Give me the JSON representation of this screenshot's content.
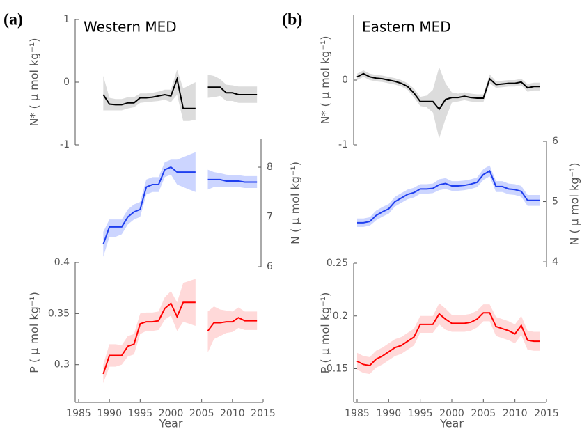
{
  "chart_data": [
    {
      "type": "line",
      "panel_label": "(a)",
      "title": "Western MED",
      "ylabel": "N* ( μ mol kg⁻¹)",
      "x": [
        1989,
        1990,
        1991,
        1992,
        1993,
        1994,
        1995,
        1996,
        1997,
        1998,
        1999,
        2000,
        2001,
        2002,
        2003,
        2004,
        2005,
        2006,
        2007,
        2008,
        2009,
        2010,
        2011,
        2012,
        2013,
        2014
      ],
      "xlim": [
        1985,
        2015
      ],
      "ylim": [
        -1,
        1
      ],
      "yticks": [
        1,
        0,
        -1
      ],
      "series": [
        {
          "color": "#000000",
          "band_color": "#dcdcdc",
          "values": [
            -0.2,
            -0.35,
            -0.36,
            -0.36,
            -0.33,
            -0.33,
            -0.25,
            -0.25,
            -0.24,
            -0.22,
            -0.2,
            -0.22,
            0.05,
            -0.42,
            -0.42,
            -0.42,
            null,
            -0.08,
            -0.08,
            -0.08,
            -0.17,
            -0.17,
            -0.2,
            -0.2,
            -0.2,
            -0.2
          ],
          "lower": [
            -0.45,
            -0.45,
            -0.45,
            -0.45,
            -0.42,
            -0.4,
            -0.33,
            -0.32,
            -0.31,
            -0.3,
            -0.28,
            -0.32,
            -0.2,
            -0.62,
            -0.62,
            -0.6,
            null,
            -0.25,
            -0.24,
            -0.22,
            -0.3,
            -0.3,
            -0.33,
            -0.33,
            -0.33,
            -0.33
          ],
          "upper": [
            0.1,
            -0.25,
            -0.27,
            -0.27,
            -0.24,
            -0.24,
            -0.18,
            -0.18,
            -0.17,
            -0.15,
            -0.12,
            -0.12,
            0.2,
            -0.1,
            -0.05,
            0.0,
            null,
            0.12,
            0.1,
            0.05,
            -0.04,
            -0.05,
            -0.07,
            -0.07,
            -0.07,
            -0.07
          ]
        }
      ]
    },
    {
      "type": "line",
      "ylabel": "N ( μ mol kg⁻¹)",
      "x": [
        1989,
        1990,
        1991,
        1992,
        1993,
        1994,
        1995,
        1996,
        1997,
        1998,
        1999,
        2000,
        2001,
        2002,
        2003,
        2004,
        2005,
        2006,
        2007,
        2008,
        2009,
        2010,
        2011,
        2012,
        2013,
        2014
      ],
      "xlim": [
        1985,
        2015
      ],
      "ylim": [
        6,
        8.56
      ],
      "yticks": [
        8,
        7,
        6
      ],
      "series": [
        {
          "color": "#1f3fef",
          "band_color": "#ccd5ff",
          "values": [
            6.45,
            6.8,
            6.8,
            6.8,
            7.0,
            7.1,
            7.15,
            7.6,
            7.65,
            7.65,
            7.95,
            8.0,
            7.9,
            7.9,
            7.9,
            7.9,
            null,
            7.75,
            7.75,
            7.75,
            7.72,
            7.72,
            7.72,
            7.7,
            7.7,
            7.7
          ],
          "lower": [
            6.2,
            6.6,
            6.6,
            6.65,
            6.85,
            6.95,
            7.0,
            7.45,
            7.5,
            7.5,
            7.8,
            7.85,
            7.65,
            7.6,
            7.55,
            7.5,
            null,
            7.55,
            7.6,
            7.6,
            7.6,
            7.6,
            7.6,
            7.58,
            7.58,
            7.58
          ],
          "upper": [
            6.7,
            6.95,
            6.95,
            6.95,
            7.15,
            7.25,
            7.3,
            7.75,
            7.8,
            7.8,
            8.1,
            8.15,
            8.15,
            8.2,
            8.25,
            8.3,
            null,
            7.95,
            7.9,
            7.88,
            7.85,
            7.84,
            7.84,
            7.82,
            7.82,
            7.82
          ]
        }
      ]
    },
    {
      "type": "line",
      "ylabel": "P ( μ mol kg⁻¹)",
      "xlabel": "Year",
      "x": [
        1989,
        1990,
        1991,
        1992,
        1993,
        1994,
        1995,
        1996,
        1997,
        1998,
        1999,
        2000,
        2001,
        2002,
        2003,
        2004,
        2005,
        2006,
        2007,
        2008,
        2009,
        2010,
        2011,
        2012,
        2013,
        2014
      ],
      "xlim": [
        1985,
        2015
      ],
      "xticks": [
        1985,
        1990,
        1995,
        2000,
        2005,
        2010,
        2015
      ],
      "ylim": [
        0.263,
        0.4
      ],
      "yticks": [
        0.4,
        0.35,
        0.3
      ],
      "series": [
        {
          "color": "#ff0000",
          "band_color": "#ffd9d9",
          "values": [
            0.291,
            0.309,
            0.309,
            0.309,
            0.318,
            0.32,
            0.34,
            0.342,
            0.342,
            0.343,
            0.355,
            0.36,
            0.347,
            0.361,
            0.361,
            0.361,
            null,
            0.333,
            0.341,
            0.341,
            0.342,
            0.342,
            0.346,
            0.343,
            0.343,
            0.343
          ],
          "lower": [
            0.282,
            0.298,
            0.298,
            0.3,
            0.308,
            0.31,
            0.33,
            0.333,
            0.333,
            0.334,
            0.344,
            0.348,
            0.333,
            0.342,
            0.34,
            0.338,
            null,
            0.312,
            0.325,
            0.328,
            0.331,
            0.332,
            0.336,
            0.334,
            0.334,
            0.334
          ],
          "upper": [
            0.3,
            0.32,
            0.32,
            0.319,
            0.328,
            0.33,
            0.35,
            0.351,
            0.351,
            0.352,
            0.366,
            0.372,
            0.361,
            0.38,
            0.382,
            0.384,
            null,
            0.352,
            0.357,
            0.354,
            0.353,
            0.352,
            0.356,
            0.352,
            0.352,
            0.352
          ]
        }
      ]
    },
    {
      "type": "line",
      "panel_label": "(b)",
      "title": "Eastern MED",
      "ylabel": "N* ( μ mol kg⁻¹)",
      "x": [
        1985,
        1986,
        1987,
        1988,
        1989,
        1990,
        1991,
        1992,
        1993,
        1994,
        1995,
        1996,
        1997,
        1998,
        1999,
        2000,
        2001,
        2002,
        2003,
        2004,
        2005,
        2006,
        2007,
        2008,
        2009,
        2010,
        2011,
        2012,
        2013,
        2014
      ],
      "xlim": [
        1985,
        2015
      ],
      "ylim": [
        -1,
        1
      ],
      "yticks": [
        0,
        -1
      ],
      "series": [
        {
          "color": "#000000",
          "band_color": "#dcdcdc",
          "values": [
            0.05,
            0.1,
            0.05,
            0.03,
            0.02,
            0,
            -0.02,
            -0.05,
            -0.1,
            -0.2,
            -0.33,
            -0.33,
            -0.33,
            -0.45,
            -0.3,
            -0.27,
            -0.27,
            -0.25,
            -0.27,
            -0.28,
            -0.28,
            0.02,
            -0.07,
            -0.06,
            -0.05,
            -0.05,
            -0.03,
            -0.12,
            -0.1,
            -0.1
          ],
          "lower": [
            0,
            0.05,
            0,
            -0.02,
            -0.03,
            -0.05,
            -0.07,
            -0.1,
            -0.15,
            -0.27,
            -0.4,
            -0.42,
            -0.5,
            -0.9,
            -0.6,
            -0.35,
            -0.33,
            -0.31,
            -0.33,
            -0.34,
            -0.34,
            -0.05,
            -0.12,
            -0.11,
            -0.1,
            -0.1,
            -0.08,
            -0.18,
            -0.16,
            -0.16
          ],
          "upper": [
            0.1,
            0.15,
            0.1,
            0.08,
            0.07,
            0.05,
            0.03,
            0,
            -0.05,
            -0.13,
            -0.26,
            -0.24,
            -0.15,
            0.2,
            -0.05,
            -0.19,
            -0.21,
            -0.19,
            -0.21,
            -0.22,
            -0.22,
            0.09,
            -0.02,
            -0.01,
            0,
            0,
            0.02,
            -0.06,
            -0.04,
            -0.04
          ]
        }
      ]
    },
    {
      "type": "line",
      "ylabel": "N ( μ mol kg⁻¹)",
      "x": [
        1985,
        1986,
        1987,
        1988,
        1989,
        1990,
        1991,
        1992,
        1993,
        1994,
        1995,
        1996,
        1997,
        1998,
        1999,
        2000,
        2001,
        2002,
        2003,
        2004,
        2005,
        2006,
        2007,
        2008,
        2009,
        2010,
        2011,
        2012,
        2013,
        2014
      ],
      "xlim": [
        1985,
        2015
      ],
      "ylim": [
        3.92,
        6
      ],
      "yticks": [
        6,
        5,
        4
      ],
      "series": [
        {
          "color": "#1f3fef",
          "band_color": "#ccd5ff",
          "values": [
            4.65,
            4.65,
            4.67,
            4.77,
            4.83,
            4.88,
            5.0,
            5.06,
            5.12,
            5.15,
            5.21,
            5.21,
            5.22,
            5.28,
            5.3,
            5.26,
            5.26,
            5.27,
            5.29,
            5.32,
            5.45,
            5.51,
            5.25,
            5.25,
            5.21,
            5.2,
            5.17,
            5.02,
            5.02,
            5.02
          ],
          "lower": [
            4.58,
            4.58,
            4.6,
            4.69,
            4.75,
            4.8,
            4.92,
            4.98,
            5.04,
            5.07,
            5.13,
            5.13,
            5.14,
            5.19,
            5.21,
            5.18,
            5.18,
            5.19,
            5.21,
            5.24,
            5.36,
            5.42,
            5.16,
            5.16,
            5.12,
            5.11,
            5.08,
            4.93,
            4.93,
            4.93
          ],
          "upper": [
            4.72,
            4.72,
            4.74,
            4.85,
            4.91,
            4.96,
            5.08,
            5.14,
            5.2,
            5.23,
            5.29,
            5.29,
            5.3,
            5.37,
            5.39,
            5.34,
            5.34,
            5.35,
            5.37,
            5.4,
            5.54,
            5.6,
            5.34,
            5.34,
            5.3,
            5.29,
            5.26,
            5.11,
            5.11,
            5.11
          ]
        }
      ]
    },
    {
      "type": "line",
      "ylabel": "P ( μ mol kg⁻¹)",
      "xlabel": "Year",
      "x": [
        1985,
        1986,
        1987,
        1988,
        1989,
        1990,
        1991,
        1992,
        1993,
        1994,
        1995,
        1996,
        1997,
        1998,
        1999,
        2000,
        2001,
        2002,
        2003,
        2004,
        2005,
        2006,
        2007,
        2008,
        2009,
        2010,
        2011,
        2012,
        2013,
        2014
      ],
      "xlim": [
        1985,
        2015
      ],
      "xticks": [
        1985,
        1990,
        1995,
        2000,
        2005,
        2010,
        2015
      ],
      "ylim": [
        0.118,
        0.25
      ],
      "yticks": [
        0.25,
        0.2,
        0.15
      ],
      "series": [
        {
          "color": "#ff0000",
          "band_color": "#ffd9d9",
          "values": [
            0.157,
            0.154,
            0.153,
            0.159,
            0.162,
            0.166,
            0.17,
            0.172,
            0.176,
            0.18,
            0.192,
            0.192,
            0.192,
            0.202,
            0.197,
            0.193,
            0.193,
            0.193,
            0.194,
            0.197,
            0.203,
            0.203,
            0.19,
            0.188,
            0.186,
            0.183,
            0.191,
            0.177,
            0.176,
            0.176
          ],
          "lower": [
            0.149,
            0.146,
            0.145,
            0.151,
            0.154,
            0.158,
            0.162,
            0.164,
            0.168,
            0.172,
            0.184,
            0.184,
            0.184,
            0.192,
            0.187,
            0.185,
            0.185,
            0.185,
            0.186,
            0.189,
            0.195,
            0.195,
            0.181,
            0.179,
            0.177,
            0.174,
            0.182,
            0.168,
            0.167,
            0.167
          ],
          "upper": [
            0.165,
            0.162,
            0.161,
            0.167,
            0.17,
            0.174,
            0.178,
            0.18,
            0.184,
            0.188,
            0.2,
            0.2,
            0.2,
            0.212,
            0.207,
            0.201,
            0.201,
            0.201,
            0.202,
            0.205,
            0.211,
            0.211,
            0.199,
            0.197,
            0.195,
            0.192,
            0.2,
            0.186,
            0.185,
            0.185
          ]
        }
      ]
    }
  ]
}
